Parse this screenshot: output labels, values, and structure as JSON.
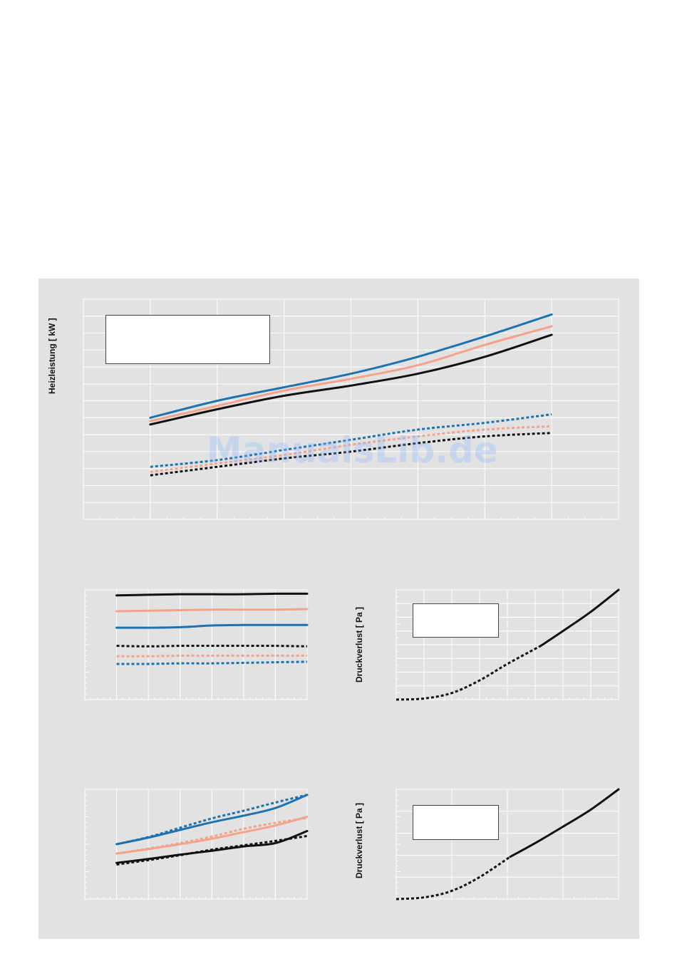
{
  "labels": {
    "heizleistung": "Heizleistung [ kW ]",
    "druckverlust_1": "Druckverlust [ Pa ]",
    "druckverlust_2": "Druckverlust [ Pa ]"
  },
  "watermark": "ManualsLib.de",
  "colors": {
    "black": "#111111",
    "salmon": "#f5a28a",
    "blue": "#1d72b0",
    "panel": "#e2e2e2",
    "grid": "#ffffff"
  },
  "chart_data": [
    {
      "id": "main",
      "type": "line",
      "ylabel": "Heizleistung [ kW ]",
      "xlim": [
        0,
        8
      ],
      "ylim": [
        0,
        13
      ],
      "series": [
        {
          "color": "blue",
          "dash": false,
          "x": [
            1,
            2,
            3,
            4,
            5,
            6,
            7
          ],
          "y": [
            6.0,
            7.0,
            7.8,
            8.6,
            9.6,
            10.8,
            12.1
          ]
        },
        {
          "color": "salmon",
          "dash": false,
          "x": [
            1,
            2,
            3,
            4,
            5,
            6,
            7
          ],
          "y": [
            5.8,
            6.7,
            7.6,
            8.3,
            9.1,
            10.3,
            11.4
          ]
        },
        {
          "color": "black",
          "dash": false,
          "x": [
            1,
            2,
            3,
            4,
            5,
            6,
            7
          ],
          "y": [
            5.6,
            6.5,
            7.3,
            7.9,
            8.6,
            9.6,
            10.9
          ]
        },
        {
          "color": "blue",
          "dash": true,
          "x": [
            1,
            2,
            3,
            4,
            5,
            6,
            7
          ],
          "y": [
            3.1,
            3.5,
            4.1,
            4.7,
            5.3,
            5.7,
            6.2
          ]
        },
        {
          "color": "salmon",
          "dash": true,
          "x": [
            1,
            2,
            3,
            4,
            5,
            6,
            7
          ],
          "y": [
            2.8,
            3.3,
            3.8,
            4.4,
            4.9,
            5.3,
            5.5
          ]
        },
        {
          "color": "black",
          "dash": true,
          "x": [
            1,
            2,
            3,
            4,
            5,
            6,
            7
          ],
          "y": [
            2.6,
            3.1,
            3.6,
            4.0,
            4.5,
            4.9,
            5.1
          ]
        }
      ]
    },
    {
      "id": "mid-left",
      "type": "line",
      "xlim": [
        0,
        7
      ],
      "ylim": [
        0,
        20
      ],
      "series": [
        {
          "color": "black",
          "dash": false,
          "x": [
            1,
            2,
            3,
            4,
            5,
            6,
            7
          ],
          "y": [
            19.0,
            19.1,
            19.2,
            19.2,
            19.2,
            19.3,
            19.3
          ]
        },
        {
          "color": "salmon",
          "dash": false,
          "x": [
            1,
            2,
            3,
            4,
            5,
            6,
            7
          ],
          "y": [
            16.1,
            16.2,
            16.3,
            16.4,
            16.4,
            16.4,
            16.5
          ]
        },
        {
          "color": "blue",
          "dash": false,
          "x": [
            1,
            2,
            3,
            4,
            5,
            6,
            7
          ],
          "y": [
            13.1,
            13.1,
            13.2,
            13.5,
            13.6,
            13.6,
            13.6
          ]
        },
        {
          "color": "black",
          "dash": true,
          "x": [
            1,
            2,
            3,
            4,
            5,
            6,
            7
          ],
          "y": [
            9.8,
            9.7,
            9.8,
            9.8,
            9.8,
            9.8,
            9.7
          ]
        },
        {
          "color": "salmon",
          "dash": true,
          "x": [
            1,
            2,
            3,
            4,
            5,
            6,
            7
          ],
          "y": [
            7.9,
            7.9,
            8.0,
            8.0,
            8.0,
            8.0,
            8.0
          ]
        },
        {
          "color": "blue",
          "dash": true,
          "x": [
            1,
            2,
            3,
            4,
            5,
            6,
            7
          ],
          "y": [
            6.5,
            6.5,
            6.6,
            6.6,
            6.7,
            6.8,
            6.9
          ]
        }
      ]
    },
    {
      "id": "mid-right",
      "type": "line",
      "ylabel": "Druckverlust [ Pa ]",
      "xlim": [
        0,
        8
      ],
      "ylim": [
        0,
        200
      ],
      "series": [
        {
          "color": "black",
          "dash": true,
          "x": [
            0,
            1,
            2,
            3,
            4,
            5.2
          ],
          "y": [
            0,
            2,
            12,
            35,
            65,
            98
          ]
        },
        {
          "color": "black",
          "dash": false,
          "x": [
            5.2,
            6,
            7,
            8
          ],
          "y": [
            98,
            125,
            160,
            200
          ]
        }
      ]
    },
    {
      "id": "bottom-left",
      "type": "line",
      "xlim": [
        0,
        7
      ],
      "ylim": [
        0,
        20
      ],
      "series": [
        {
          "color": "blue",
          "dash": false,
          "x": [
            1,
            2,
            3,
            4,
            5,
            6,
            7
          ],
          "y": [
            10.0,
            11.2,
            12.6,
            14.0,
            15.2,
            16.6,
            19.0
          ]
        },
        {
          "color": "salmon",
          "dash": false,
          "x": [
            1,
            2,
            3,
            4,
            5,
            6,
            7
          ],
          "y": [
            8.3,
            9.1,
            10.0,
            11.0,
            12.2,
            13.4,
            15.0
          ]
        },
        {
          "color": "black",
          "dash": false,
          "x": [
            1,
            2,
            3,
            4,
            5,
            6,
            7
          ],
          "y": [
            6.6,
            7.3,
            8.1,
            8.8,
            9.6,
            10.2,
            12.4
          ]
        },
        {
          "color": "blue",
          "dash": true,
          "x": [
            1,
            2,
            3,
            4,
            5,
            6,
            7
          ],
          "y": [
            10.0,
            11.3,
            13.0,
            14.7,
            16.1,
            17.6,
            19.0
          ]
        },
        {
          "color": "salmon",
          "dash": true,
          "x": [
            1,
            2,
            3,
            4,
            5,
            6,
            7
          ],
          "y": [
            8.3,
            9.2,
            10.2,
            11.4,
            12.8,
            13.9,
            14.8
          ]
        },
        {
          "color": "black",
          "dash": true,
          "x": [
            1,
            2,
            3,
            4,
            5,
            6,
            7
          ],
          "y": [
            6.3,
            7.1,
            8.0,
            9.0,
            9.8,
            10.6,
            11.5
          ]
        }
      ]
    },
    {
      "id": "bottom-right",
      "type": "line",
      "ylabel": "Druckverlust [ Pa ]",
      "xlim": [
        0,
        8
      ],
      "ylim": [
        0,
        200
      ],
      "series": [
        {
          "color": "black",
          "dash": true,
          "x": [
            0,
            1,
            2,
            3,
            4.1
          ],
          "y": [
            0,
            3,
            15,
            40,
            77
          ]
        },
        {
          "color": "black",
          "dash": false,
          "x": [
            4.1,
            5,
            6,
            7,
            8
          ],
          "y": [
            77,
            102,
            132,
            163,
            200
          ]
        }
      ]
    }
  ]
}
